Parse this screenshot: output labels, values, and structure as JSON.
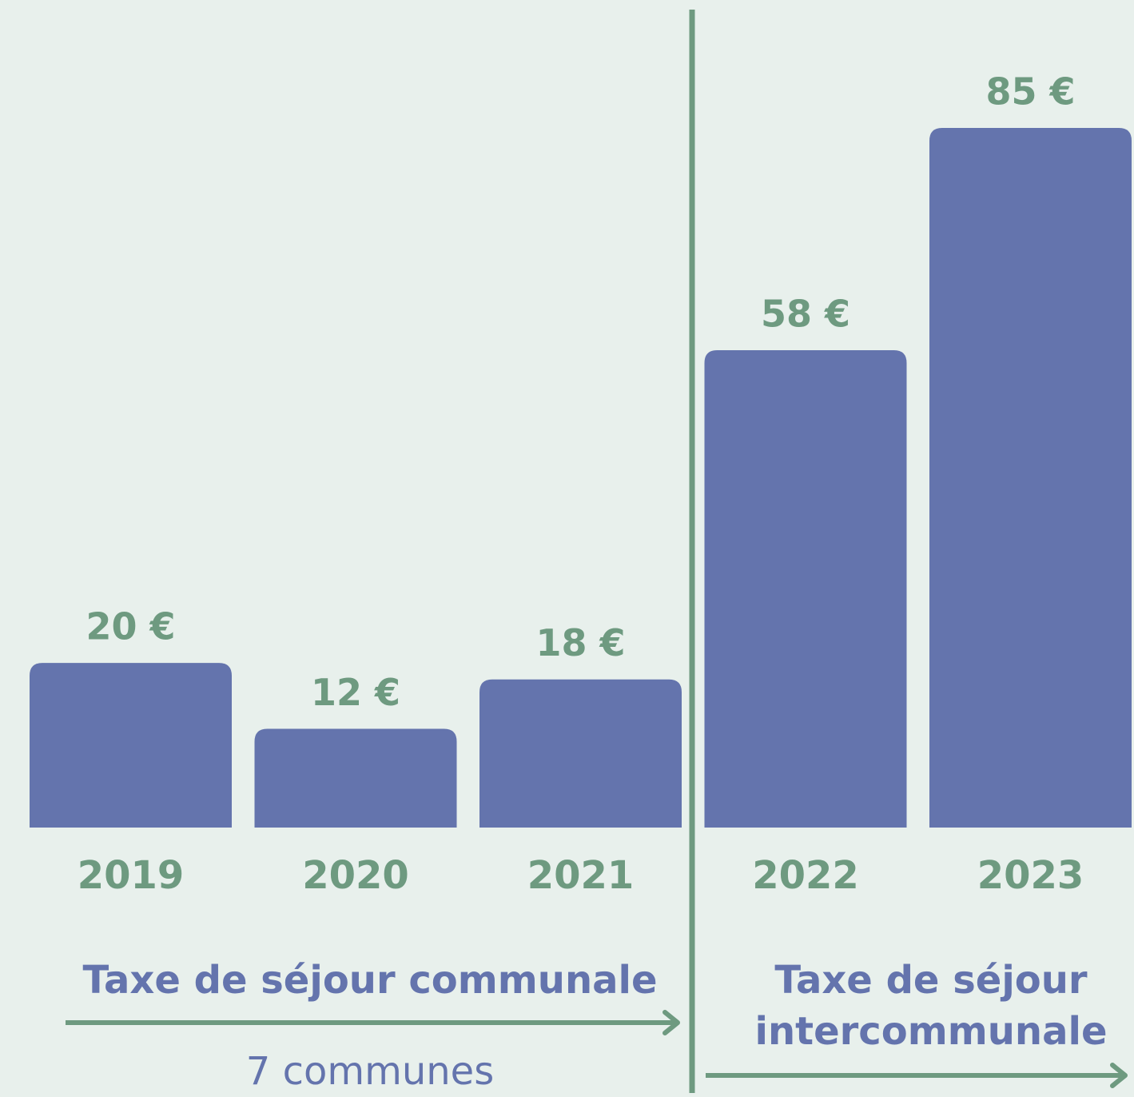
{
  "chart_data": {
    "type": "bar",
    "categories": [
      "2019",
      "2020",
      "2021",
      "2022",
      "2023"
    ],
    "values": [
      20,
      12,
      18,
      58,
      85
    ],
    "value_labels": [
      "20 €",
      "12 €",
      "18 €",
      "58 €",
      "85 €"
    ],
    "color": "#6474ad",
    "annotations": [
      "Taxe de séjour communale",
      "7 communes",
      "Taxe de séjour intercommunale"
    ]
  }
}
